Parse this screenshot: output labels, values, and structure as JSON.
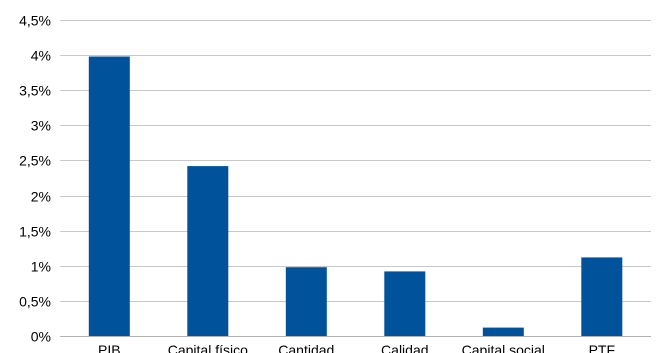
{
  "chart_data": {
    "type": "bar",
    "categories": [
      "PIB",
      "Capital físico",
      "Cantidad",
      "Calidad",
      "Capital social",
      "PTF"
    ],
    "values": [
      3.98,
      2.42,
      0.98,
      0.92,
      0.12,
      1.12
    ],
    "title": "",
    "xlabel": "",
    "ylabel": "",
    "ylim": [
      0,
      4.5
    ],
    "yticks": [
      0,
      0.5,
      1,
      1.5,
      2,
      2.5,
      3,
      3.5,
      4,
      4.5
    ],
    "ytick_labels": [
      "0%",
      "0,5%",
      "1%",
      "1,5%",
      "2%",
      "2,5%",
      "3%",
      "3,5%",
      "4%",
      "4,5%"
    ],
    "grid": true,
    "bar_color": "#00539b"
  }
}
